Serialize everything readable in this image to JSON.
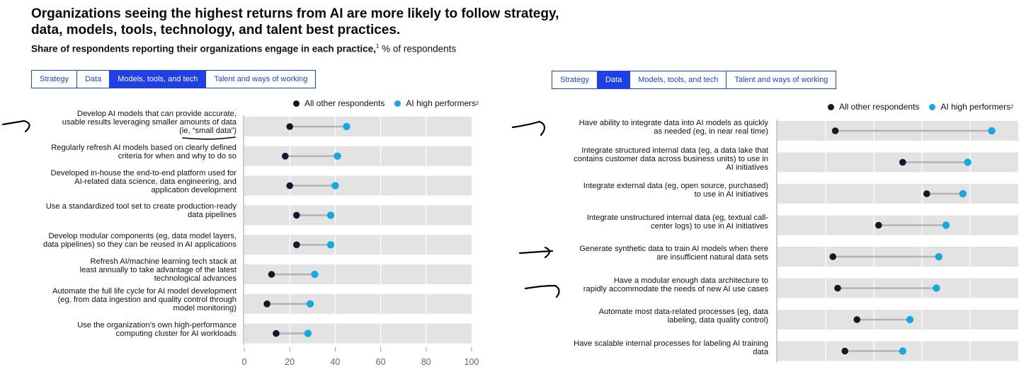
{
  "header": {
    "title": "Organizations seeing the highest returns from AI are more likely to follow strategy, data, models, tools, technology, and talent best practices.",
    "subtitle_bold": "Share of respondents reporting their organizations engage in each practice,",
    "subtitle_sup": "1",
    "subtitle_rest": " % of respondents"
  },
  "colors": {
    "accent": "#1f40e6",
    "all_others": "#0e1a2b",
    "high_performers": "#17a8e3",
    "band": "#e3e3e3",
    "connector": "#b4b4b4"
  },
  "legend": {
    "all_others": "All other respondents",
    "high_performers": "AI high performers",
    "high_performers_sup": "2"
  },
  "left_panel": {
    "tabs": [
      {
        "label": "Strategy",
        "active": false
      },
      {
        "label": "Data",
        "active": false
      },
      {
        "label": "Models, tools, and tech",
        "active": true
      },
      {
        "label": "Talent and ways of working",
        "active": false
      }
    ]
  },
  "right_panel": {
    "tabs": [
      {
        "label": "Strategy",
        "active": false
      },
      {
        "label": "Data",
        "active": true
      },
      {
        "label": "Models, tools, and tech",
        "active": false
      },
      {
        "label": "Talent and ways of working",
        "active": false
      }
    ]
  },
  "chart_data": [
    {
      "type": "dumbbell",
      "panel": "Models, tools, and tech",
      "xlim": [
        0,
        100
      ],
      "xticks": [
        "0",
        "20",
        "40",
        "60",
        "80",
        "100"
      ],
      "series": [
        {
          "name": "All other respondents",
          "key": "others"
        },
        {
          "name": "AI high performers",
          "key": "high"
        }
      ],
      "rows": [
        {
          "label": [
            "Develop AI models that can provide accurate,",
            "usable results leveraging smaller amounts of data",
            "(ie, “small data”)"
          ],
          "others": 20,
          "high": 45
        },
        {
          "label": [
            "Regularly refresh AI models based on clearly defined",
            "criteria for when and why to do so"
          ],
          "others": 18,
          "high": 41
        },
        {
          "label": [
            "Developed in-house the end-to-end platform used for",
            "AI-related data science, data engineering, and",
            "application development"
          ],
          "others": 20,
          "high": 40
        },
        {
          "label": [
            "Use a standardized tool set to create production-ready",
            "data pipelines"
          ],
          "others": 23,
          "high": 38
        },
        {
          "label": [
            "Develop modular components (eg, data model layers,",
            "data pipelines) so they can be reused in AI applications"
          ],
          "others": 23,
          "high": 38
        },
        {
          "label": [
            "Refresh AI/machine learning tech stack at",
            "least annually to take advantage of the latest",
            "technological advances"
          ],
          "others": 12,
          "high": 31
        },
        {
          "label": [
            "Automate the full life cycle for AI model development",
            "(eg, from data ingestion and quality control through",
            "model monitoring)"
          ],
          "others": 10,
          "high": 29
        },
        {
          "label": [
            "Use the organization’s own high-performance",
            "computing cluster for AI workloads"
          ],
          "others": 14,
          "high": 28
        }
      ]
    },
    {
      "type": "dumbbell",
      "panel": "Data",
      "xlim": [
        0,
        100
      ],
      "series": [
        {
          "name": "All other respondents",
          "key": "others"
        },
        {
          "name": "AI high performers",
          "key": "high"
        }
      ],
      "rows": [
        {
          "label": [
            "Have ability to integrate data into AI models as quickly",
            "as needed (eg, in near real time)"
          ],
          "others": 24,
          "high": 89
        },
        {
          "label": [
            "Integrate structured internal data (eg, a data lake that",
            "contains customer data across business units) to use in",
            "AI initiatives"
          ],
          "others": 52,
          "high": 79
        },
        {
          "label": [
            "Integrate external data (eg, open source, purchased)",
            "to use in AI initiatives"
          ],
          "others": 62,
          "high": 77
        },
        {
          "label": [
            "Integrate unstructured internal data (eg, textual call-",
            "center logs) to use in AI initiatives"
          ],
          "others": 42,
          "high": 70
        },
        {
          "label": [
            "Generate synthetic data to train AI models when there",
            "are insufficient natural data sets"
          ],
          "others": 23,
          "high": 67
        },
        {
          "label": [
            "Have a modular enough data architecture to",
            "rapidly accommodate the needs of new AI use cases"
          ],
          "others": 25,
          "high": 66
        },
        {
          "label": [
            "Automate most data-related processes (eg, data",
            "labeling, data quality control)"
          ],
          "others": 33,
          "high": 55
        },
        {
          "label": [
            "Have scalable internal processes for labeling AI training",
            "data"
          ],
          "others": 28,
          "high": 52
        }
      ]
    }
  ]
}
